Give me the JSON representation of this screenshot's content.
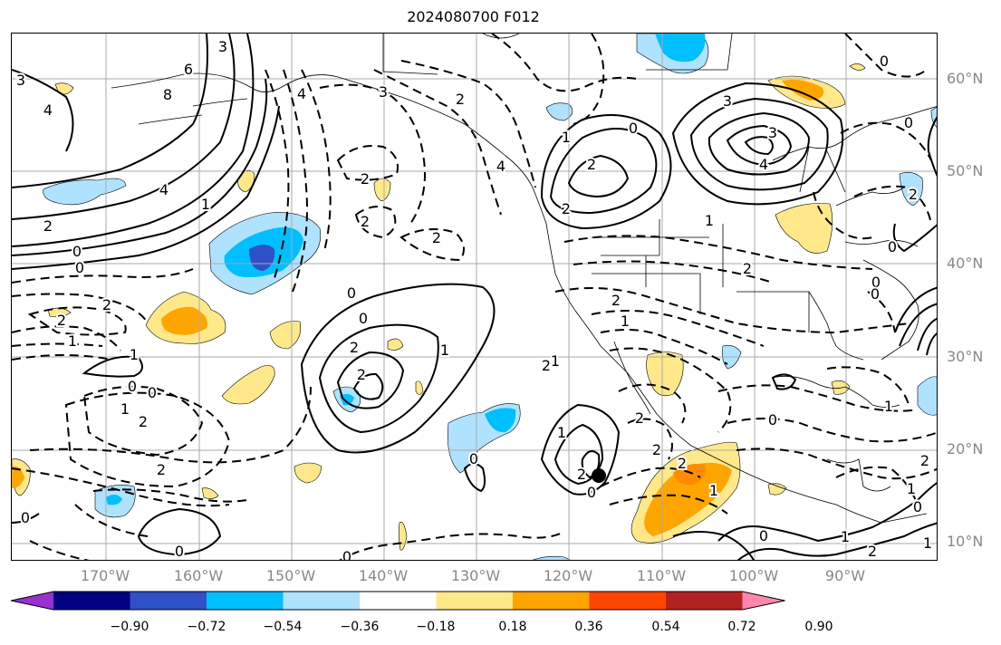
{
  "title": "2024080700 F012",
  "lat_ticks": [
    "60°N",
    "50°N",
    "40°N",
    "30°N",
    "20°N",
    "10°N"
  ],
  "lon_ticks": [
    "170°W",
    "160°W",
    "150°W",
    "140°W",
    "130°W",
    "120°W",
    "110°W",
    "100°W",
    "90°W"
  ],
  "colorbar": {
    "colors": [
      "#9b30d0",
      "#000080",
      "#3050c8",
      "#00bfff",
      "#aee2ff",
      "#ffffff",
      "#ffe88a",
      "#ffa500",
      "#ff4500",
      "#b22222",
      "#ff88aa"
    ],
    "tick_labels": [
      "−0.90",
      "−0.72",
      "−0.54",
      "−0.36",
      "−0.18",
      "0.18",
      "0.36",
      "0.54",
      "0.72",
      "0.90"
    ]
  },
  "contour_labels": [
    {
      "t": "3"
    },
    {
      "t": "4"
    },
    {
      "t": "6"
    },
    {
      "t": "8"
    },
    {
      "t": "3"
    },
    {
      "t": "4"
    },
    {
      "t": "3"
    },
    {
      "t": "2"
    },
    {
      "t": "4"
    },
    {
      "t": "2"
    },
    {
      "t": "1"
    },
    {
      "t": "2"
    },
    {
      "t": "4"
    },
    {
      "t": "1"
    },
    {
      "t": "2"
    },
    {
      "t": "0"
    },
    {
      "t": "0"
    },
    {
      "t": "2"
    },
    {
      "t": "2"
    },
    {
      "t": "1"
    },
    {
      "t": "2"
    },
    {
      "t": "2"
    },
    {
      "t": "2"
    },
    {
      "t": "0"
    },
    {
      "t": "0"
    },
    {
      "t": "2"
    },
    {
      "t": "2"
    },
    {
      "t": "1"
    },
    {
      "t": "1"
    },
    {
      "t": "0"
    },
    {
      "t": "1"
    },
    {
      "t": "2"
    },
    {
      "t": "2"
    },
    {
      "t": "0"
    },
    {
      "t": "0"
    },
    {
      "t": "1"
    },
    {
      "t": "2"
    },
    {
      "t": "0"
    },
    {
      "t": "1"
    },
    {
      "t": "2"
    },
    {
      "t": "0"
    },
    {
      "t": "1"
    },
    {
      "t": "2"
    },
    {
      "t": "0"
    },
    {
      "t": "1"
    },
    {
      "t": "2"
    },
    {
      "t": "1"
    },
    {
      "t": "2"
    },
    {
      "t": "0"
    },
    {
      "t": "0"
    },
    {
      "t": "3"
    },
    {
      "t": "4"
    },
    {
      "t": "3"
    },
    {
      "t": "1"
    },
    {
      "t": "2"
    },
    {
      "t": "0"
    },
    {
      "t": "1"
    },
    {
      "t": "0"
    },
    {
      "t": "2"
    },
    {
      "t": "0"
    },
    {
      "t": "1"
    },
    {
      "t": "0"
    },
    {
      "t": "2"
    },
    {
      "t": "2"
    },
    {
      "t": "0"
    },
    {
      "t": "0"
    },
    {
      "t": "0"
    },
    {
      "t": "2"
    },
    {
      "t": "0"
    },
    {
      "t": "1"
    }
  ]
}
